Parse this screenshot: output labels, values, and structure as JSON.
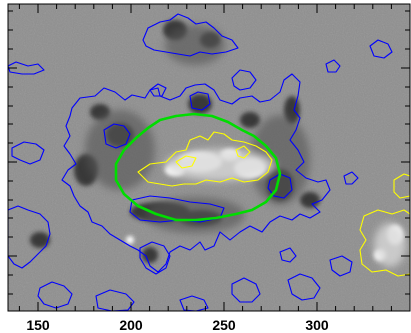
{
  "figure": {
    "kind": "solar magnetogram with contour overlays",
    "x_tick_labels": [
      "150",
      "200",
      "250",
      "300"
    ],
    "colors": {
      "background": "#8e8e8e",
      "negative_contour": "#0000ff",
      "positive_contour": "#ffff00",
      "region_contour": "#00dd00",
      "axis": "#000000"
    }
  }
}
